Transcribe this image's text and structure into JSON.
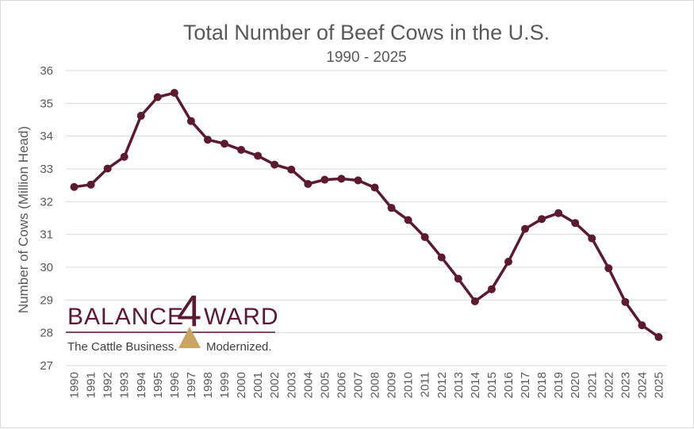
{
  "chart_data": {
    "type": "line",
    "title": "Total Number of Beef Cows in the U.S.",
    "subtitle": "1990 - 2025",
    "ylabel": "Number of Cows (Million Head)",
    "xlabel": "",
    "ylim": [
      27,
      36
    ],
    "yticks": [
      27,
      28,
      29,
      30,
      31,
      32,
      33,
      34,
      35,
      36
    ],
    "grid": "horizontal",
    "colors": {
      "line": "#5b1a2e",
      "grid": "#d9d9d9",
      "text": "#595959"
    },
    "categories": [
      "1990",
      "1991",
      "1992",
      "1993",
      "1994",
      "1995",
      "1996",
      "1997",
      "1998",
      "1999",
      "2000",
      "2001",
      "2002",
      "2003",
      "2004",
      "2005",
      "2006",
      "2007",
      "2008",
      "2009",
      "2010",
      "2011",
      "2012",
      "2013",
      "2014",
      "2015",
      "2016",
      "2017",
      "2018",
      "2019",
      "2020",
      "2021",
      "2022",
      "2023",
      "2024",
      "2025"
    ],
    "values": [
      32.45,
      32.52,
      33.01,
      33.37,
      34.62,
      35.19,
      35.32,
      34.46,
      33.89,
      33.77,
      33.58,
      33.4,
      33.13,
      32.98,
      32.54,
      32.67,
      32.7,
      32.65,
      32.43,
      31.81,
      31.44,
      30.92,
      30.3,
      29.65,
      28.96,
      29.33,
      30.17,
      31.17,
      31.47,
      31.65,
      31.35,
      30.88,
      29.97,
      28.94,
      28.23,
      27.87
    ]
  },
  "logo": {
    "word_left": "BALANCE",
    "four": "4",
    "word_right": "WARD",
    "tag_left": "The Cattle Business.",
    "tag_right": "Modernized.",
    "accent": "#5b1a2e",
    "triangle": "#c9a463"
  }
}
